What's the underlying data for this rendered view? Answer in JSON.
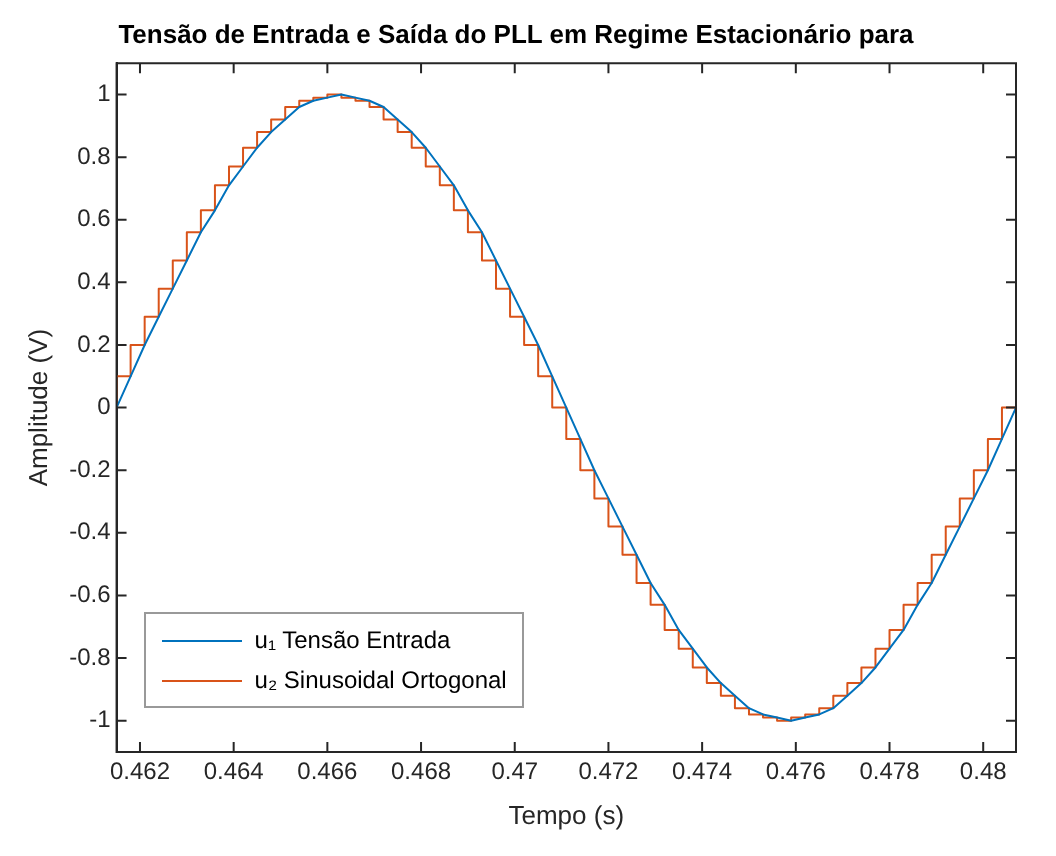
{
  "chart_data": {
    "type": "line",
    "title": "Tensão de Entrada e Saída do PLL em Regime Estacionário para",
    "xlabel": "Tempo (s)",
    "ylabel": "Amplitude (V)",
    "x": [
      0.4615,
      0.4618,
      0.4621,
      0.4624,
      0.4627,
      0.463,
      0.4633,
      0.4636,
      0.4639,
      0.4642,
      0.4645,
      0.4648,
      0.4651,
      0.4654,
      0.4657,
      0.466,
      0.4663,
      0.4666,
      0.4669,
      0.4672,
      0.4675,
      0.4678,
      0.4681,
      0.4684,
      0.4687,
      0.469,
      0.4693,
      0.4696,
      0.4699,
      0.4702,
      0.4705,
      0.4708,
      0.4711,
      0.4714,
      0.4717,
      0.472,
      0.4723,
      0.4726,
      0.4729,
      0.4732,
      0.4735,
      0.4738,
      0.4741,
      0.4744,
      0.4747,
      0.475,
      0.4753,
      0.4756,
      0.4759,
      0.4762,
      0.4765,
      0.4768,
      0.4771,
      0.4774,
      0.4777,
      0.478,
      0.4783,
      0.4786,
      0.4789,
      0.4792,
      0.4795,
      0.4798,
      0.4801,
      0.4804,
      0.4807
    ],
    "series": [
      {
        "name": "u₁ Tensão Entrada",
        "type": "line",
        "color": "#0072bd",
        "values": [
          0,
          0.1,
          0.2,
          0.29,
          0.38,
          0.47,
          0.56,
          0.63,
          0.71,
          0.77,
          0.83,
          0.88,
          0.92,
          0.96,
          0.98,
          0.99,
          1,
          0.99,
          0.98,
          0.96,
          0.92,
          0.88,
          0.83,
          0.77,
          0.71,
          0.63,
          0.56,
          0.47,
          0.38,
          0.29,
          0.2,
          0.1,
          0,
          -0.1,
          -0.2,
          -0.29,
          -0.38,
          -0.47,
          -0.56,
          -0.63,
          -0.71,
          -0.77,
          -0.83,
          -0.88,
          -0.92,
          -0.96,
          -0.98,
          -0.99,
          -1,
          -0.99,
          -0.98,
          -0.96,
          -0.92,
          -0.88,
          -0.83,
          -0.77,
          -0.71,
          -0.63,
          -0.56,
          -0.47,
          -0.38,
          -0.29,
          -0.2,
          -0.1,
          0
        ]
      },
      {
        "name": "u₂ Sinusoidal Ortogonal",
        "type": "step",
        "color": "#d95319",
        "values": [
          0,
          0.1,
          0.2,
          0.29,
          0.38,
          0.47,
          0.56,
          0.63,
          0.71,
          0.77,
          0.83,
          0.88,
          0.92,
          0.96,
          0.98,
          0.99,
          1,
          0.99,
          0.98,
          0.96,
          0.92,
          0.88,
          0.83,
          0.77,
          0.71,
          0.63,
          0.56,
          0.47,
          0.38,
          0.29,
          0.2,
          0.1,
          0,
          -0.1,
          -0.2,
          -0.29,
          -0.38,
          -0.47,
          -0.56,
          -0.63,
          -0.71,
          -0.77,
          -0.83,
          -0.88,
          -0.92,
          -0.96,
          -0.98,
          -0.99,
          -1,
          -0.99,
          -0.98,
          -0.96,
          -0.92,
          -0.88,
          -0.83,
          -0.77,
          -0.71,
          -0.63,
          -0.56,
          -0.47,
          -0.38,
          -0.29,
          -0.2,
          -0.1,
          0
        ]
      }
    ],
    "xlim": [
      0.4615,
      0.4807
    ],
    "xticks": [
      0.462,
      0.464,
      0.466,
      0.468,
      0.47,
      0.472,
      0.474,
      0.476,
      0.478,
      0.48
    ],
    "ylim": [
      -1.1,
      1.1
    ],
    "yticks": [
      -1,
      -0.8,
      -0.6,
      -0.4,
      -0.2,
      0,
      0.2,
      0.4,
      0.6,
      0.8,
      1
    ],
    "grid": false,
    "legend": "bottom left",
    "marker": "none",
    "line_style": "solid"
  }
}
